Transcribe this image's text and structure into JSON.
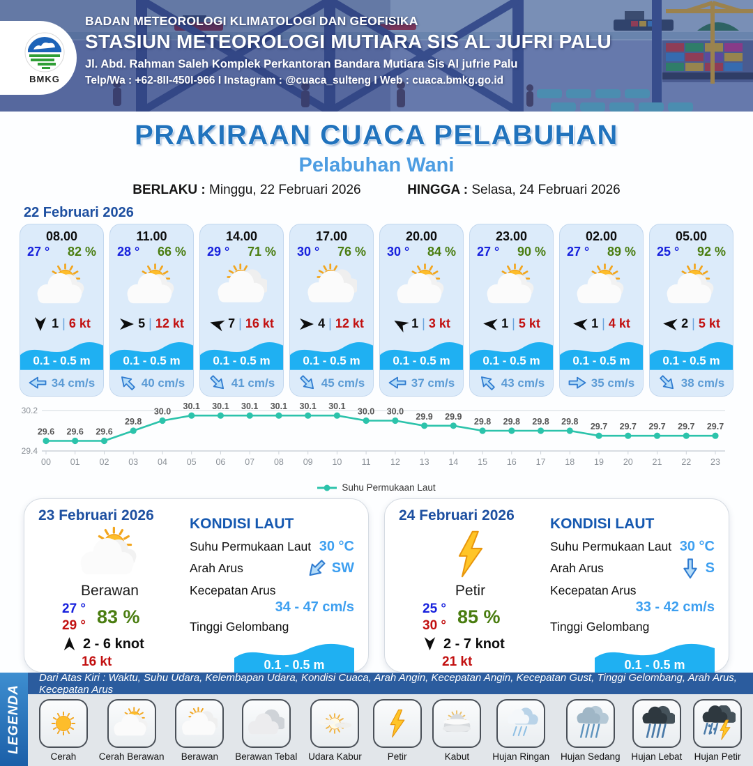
{
  "colors": {
    "accent_blue": "#2173bd",
    "light_blue": "#4d9de2",
    "temp_blue": "#1721dd",
    "humidity_green": "#4a7d10",
    "gust_red": "#c21010",
    "wave_cyan": "#1fb0f2",
    "current_blue": "#5b9bd5",
    "chart_teal": "#2cc3ab",
    "date_blue": "#1d4fa0"
  },
  "header": {
    "agency": "BADAN METEOROLOGI KLIMATOLOGI DAN GEOFISIKA",
    "station": "STASIUN METEOROLOGI MUTIARA SIS AL JUFRI PALU",
    "address": "Jl. Abd. Rahman Saleh Komplek Perkantoran Bandara Mutiara Sis Al jufrie Palu",
    "contact": "Telp/Wa : +62-8II-450I-966  I  Instagram : @cuaca_sulteng  I  Web : cuaca.bmkg.go.id",
    "logo_label": "BMKG"
  },
  "title": {
    "main": "PRAKIRAAN CUACA PELABUHAN",
    "location": "Pelabuhan Wani"
  },
  "validity": {
    "berlaku_label": "BERLAKU :",
    "berlaku_value": "Minggu, 22 Februari 2026",
    "hingga_label": "HINGGA :",
    "hingga_value": "Selasa, 24 Februari 2026"
  },
  "forecast_date": "22 Februari 2026",
  "labels": {
    "wind_sep": "|"
  },
  "hourly": [
    {
      "time": "08.00",
      "temp": "27 °",
      "humidity": "82 %",
      "icon": "cerah-berawan",
      "wind_dir_deg": 90,
      "wind_speed": "1",
      "gust": "6 kt",
      "wave": "0.1 - 0.5 m",
      "current_dir_deg": 180,
      "current": "34 cm/s"
    },
    {
      "time": "11.00",
      "temp": "28 °",
      "humidity": "66 %",
      "icon": "cerah-berawan",
      "wind_dir_deg": 0,
      "wind_speed": "5",
      "gust": "12 kt",
      "wave": "0.1 - 0.5 m",
      "current_dir_deg": 225,
      "current": "40 cm/s"
    },
    {
      "time": "14.00",
      "temp": "29 °",
      "humidity": "71 %",
      "icon": "berawan",
      "wind_dir_deg": 195,
      "wind_speed": "7",
      "gust": "16 kt",
      "wave": "0.1 - 0.5 m",
      "current_dir_deg": 45,
      "current": "41 cm/s"
    },
    {
      "time": "17.00",
      "temp": "30 °",
      "humidity": "76 %",
      "icon": "berawan",
      "wind_dir_deg": 0,
      "wind_speed": "4",
      "gust": "12 kt",
      "wave": "0.1 - 0.5 m",
      "current_dir_deg": 45,
      "current": "45 cm/s"
    },
    {
      "time": "20.00",
      "temp": "30 °",
      "humidity": "84 %",
      "icon": "cerah-berawan",
      "wind_dir_deg": 210,
      "wind_speed": "1",
      "gust": "3 kt",
      "wave": "0.1 - 0.5 m",
      "current_dir_deg": 180,
      "current": "37 cm/s"
    },
    {
      "time": "23.00",
      "temp": "27 °",
      "humidity": "90 %",
      "icon": "cerah-berawan",
      "wind_dir_deg": 185,
      "wind_speed": "1",
      "gust": "5 kt",
      "wave": "0.1 - 0.5 m",
      "current_dir_deg": 225,
      "current": "43 cm/s"
    },
    {
      "time": "02.00",
      "temp": "27 °",
      "humidity": "89 %",
      "icon": "cerah-berawan",
      "wind_dir_deg": 185,
      "wind_speed": "1",
      "gust": "4 kt",
      "wave": "0.1 - 0.5 m",
      "current_dir_deg": 0,
      "current": "35 cm/s"
    },
    {
      "time": "05.00",
      "temp": "25 °",
      "humidity": "92 %",
      "icon": "cerah-berawan",
      "wind_dir_deg": 185,
      "wind_speed": "2",
      "gust": "5 kt",
      "wave": "0.1 - 0.5 m",
      "current_dir_deg": 45,
      "current": "38 cm/s"
    }
  ],
  "chart_data": {
    "type": "line",
    "x": [
      "00",
      "01",
      "02",
      "03",
      "04",
      "05",
      "06",
      "07",
      "08",
      "09",
      "10",
      "11",
      "12",
      "13",
      "14",
      "15",
      "16",
      "17",
      "18",
      "19",
      "20",
      "21",
      "22",
      "23"
    ],
    "series": [
      {
        "name": "Suhu Permukaan Laut",
        "values": [
          29.6,
          29.6,
          29.6,
          29.8,
          30.0,
          30.1,
          30.1,
          30.1,
          30.1,
          30.1,
          30.1,
          30.0,
          30.0,
          29.9,
          29.9,
          29.8,
          29.8,
          29.8,
          29.8,
          29.7,
          29.7,
          29.7,
          29.7,
          29.7
        ]
      }
    ],
    "ylim": [
      29.4,
      30.2
    ],
    "yticks": [
      "29.4",
      "30.2"
    ],
    "line_color": "#2cc3ab",
    "grid": true,
    "legend_position": "bottom",
    "title": "",
    "xlabel": "",
    "ylabel": ""
  },
  "daily": [
    {
      "date": "23 Februari 2026",
      "icon": "cerah-berawan",
      "condition": "Berawan",
      "temp_min": "27 °",
      "temp_max": "29 °",
      "humidity": "83 %",
      "wind_dir_deg": 270,
      "wind": "2  - 6 knot",
      "gust": "16 kt",
      "sea": {
        "title": "KONDISI LAUT",
        "sst_label": "Suhu Permukaan Laut",
        "sst": "30 °C",
        "dir_label": "Arah Arus",
        "dir_deg": 135,
        "dir": "SW",
        "speed_label": "Kecepatan Arus",
        "speed": "34  - 47 cm/s",
        "wave_label": "Tinggi Gelombang",
        "wave": "0.1 - 0.5 m"
      }
    },
    {
      "date": "24 Februari 2026",
      "icon": "petir",
      "condition": "Petir",
      "temp_min": "25 °",
      "temp_max": "30 °",
      "humidity": "85 %",
      "wind_dir_deg": 90,
      "wind": "2  - 7 knot",
      "gust": "21 kt",
      "sea": {
        "title": "KONDISI LAUT",
        "sst_label": "Suhu Permukaan Laut",
        "sst": "30 °C",
        "dir_label": "Arah Arus",
        "dir_deg": 90,
        "dir": "S",
        "speed_label": "Kecepatan Arus",
        "speed": "33  - 42 cm/s",
        "wave_label": "Tinggi Gelombang",
        "wave": "0.1 - 0.5 m"
      }
    }
  ],
  "legend": {
    "title": "LEGENDA",
    "note": "Dari Atas Kiri : Waktu, Suhu Udara, Kelembapan Udara, Kondisi Cuaca, Arah Angin, Kecepatan Angin, Kecepatan Gust, Tinggi Gelombang, Arah Arus, Kecepatan Arus",
    "items": [
      {
        "icon": "cerah",
        "label": "Cerah"
      },
      {
        "icon": "cerah-berawan",
        "label": "Cerah Berawan"
      },
      {
        "icon": "berawan",
        "label": "Berawan"
      },
      {
        "icon": "berawan-tebal",
        "label": "Berawan Tebal"
      },
      {
        "icon": "udara-kabur",
        "label": "Udara Kabur"
      },
      {
        "icon": "petir",
        "label": "Petir"
      },
      {
        "icon": "kabut",
        "label": "Kabut"
      },
      {
        "icon": "hujan-ringan",
        "label": "Hujan Ringan"
      },
      {
        "icon": "hujan-sedang",
        "label": "Hujan Sedang"
      },
      {
        "icon": "hujan-lebat",
        "label": "Hujan Lebat"
      },
      {
        "icon": "hujan-petir",
        "label": "Hujan Petir"
      }
    ]
  }
}
